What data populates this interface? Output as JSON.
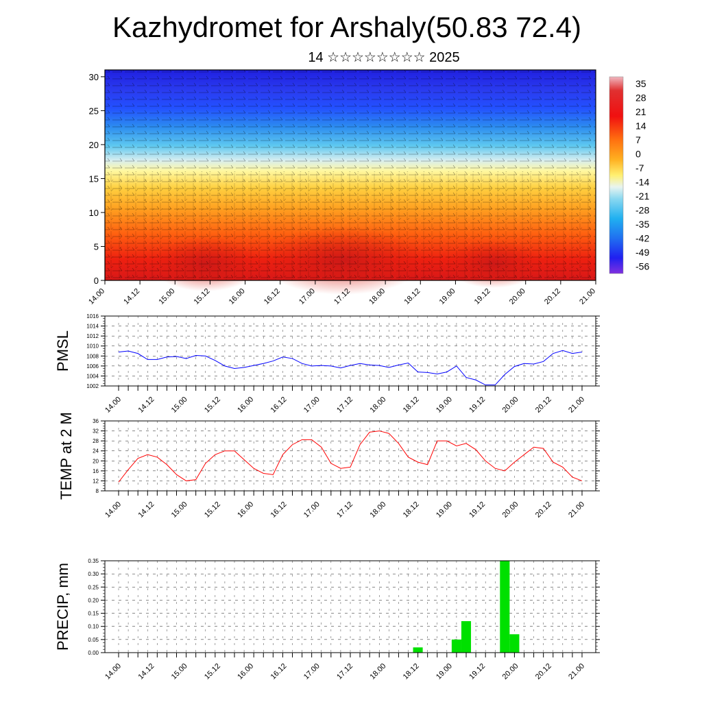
{
  "header": {
    "title": "Kazhydromet for Arshaly(50.83 72.4)",
    "subtitle": "14 ☆☆☆☆☆☆☆☆ 2025"
  },
  "colors": {
    "pressure_line": "#0000ff",
    "temperature_line": "#ff0000",
    "precip_bar": "#00e000"
  },
  "chart_data": [
    {
      "type": "heatmap",
      "title": "",
      "description_levels": "cross-section of temperature with wind barbs",
      "x_tick_labels": [
        "14.00",
        "14.12",
        "15.00",
        "15.12",
        "16.00",
        "16.12",
        "17.00",
        "17.12",
        "18.00",
        "18.12",
        "19.00",
        "19.12",
        "20.00",
        "20.12",
        "21.00"
      ],
      "y_tick_labels": [
        "0",
        "5",
        "10",
        "15",
        "20",
        "25",
        "30"
      ],
      "ylim": [
        0,
        31
      ],
      "colorbar_labels": [
        "35",
        "28",
        "21",
        "14",
        "7",
        "0",
        "-7",
        "-14",
        "-21",
        "-28",
        "-35",
        "-42",
        "-49",
        "-56"
      ],
      "colorbar_range": [
        -60,
        38
      ]
    },
    {
      "type": "line",
      "ylabel": "PMSL",
      "ylim": [
        1002,
        1016
      ],
      "y_tick_labels": [
        "1016",
        "1014",
        "1012",
        "1010",
        "1008",
        "1006",
        "1004",
        "1002"
      ],
      "x_tick_labels": [
        "14.00",
        "14.12",
        "15.00",
        "15.12",
        "16.00",
        "16.12",
        "17.00",
        "17.12",
        "18.00",
        "18.12",
        "19.00",
        "19.12",
        "20.00",
        "20.12",
        "21.00"
      ],
      "x_hours": [
        0,
        3,
        6,
        9,
        12,
        15,
        18,
        21,
        24,
        27,
        30,
        33,
        36,
        39,
        42,
        45,
        48,
        51,
        54,
        57,
        60,
        63,
        66,
        69,
        72,
        75,
        78,
        81,
        84,
        87,
        90,
        93,
        96,
        99,
        102,
        105,
        108,
        111,
        114,
        117,
        120,
        123,
        126,
        129,
        132,
        135,
        138,
        141,
        144
      ],
      "values": [
        1008.8,
        1009.0,
        1008.5,
        1007.3,
        1007.3,
        1007.8,
        1007.9,
        1007.5,
        1008.1,
        1008.0,
        1007.1,
        1006.0,
        1005.5,
        1005.7,
        1006.1,
        1006.5,
        1007.0,
        1007.8,
        1007.5,
        1006.5,
        1006.0,
        1006.1,
        1006.0,
        1005.6,
        1006.1,
        1006.5,
        1006.2,
        1006.1,
        1005.7,
        1006.2,
        1006.6,
        1004.8,
        1004.7,
        1004.4,
        1004.8,
        1006.0,
        1003.7,
        1003.2,
        1002.2,
        1002.2,
        1004.3,
        1005.9,
        1006.5,
        1006.4,
        1006.9,
        1008.5,
        1009.1,
        1008.5,
        1008.8
      ]
    },
    {
      "type": "line",
      "ylabel": "TEMP at 2 M",
      "ylim": [
        8,
        36
      ],
      "y_tick_labels": [
        "36",
        "32",
        "28",
        "24",
        "20",
        "16",
        "12",
        "8"
      ],
      "x_tick_labels": [
        "14.00",
        "14.12",
        "15.00",
        "15.12",
        "16.00",
        "16.12",
        "17.00",
        "17.12",
        "18.00",
        "18.12",
        "19.00",
        "19.12",
        "20.00",
        "20.12",
        "21.00"
      ],
      "x_hours": [
        0,
        3,
        6,
        9,
        12,
        15,
        18,
        21,
        24,
        27,
        30,
        33,
        36,
        39,
        42,
        45,
        48,
        51,
        54,
        57,
        60,
        63,
        66,
        69,
        72,
        75,
        78,
        81,
        84,
        87,
        90,
        93,
        96,
        99,
        102,
        105,
        108,
        111,
        114,
        117,
        120,
        123,
        126,
        129,
        132,
        135,
        138,
        141,
        144
      ],
      "values": [
        11.5,
        16.5,
        21.0,
        22.5,
        21.5,
        18.5,
        14.5,
        12.0,
        12.5,
        19.0,
        22.5,
        24.0,
        24.0,
        20.5,
        17.0,
        15.0,
        14.5,
        22.5,
        26.5,
        28.5,
        28.5,
        25.5,
        19.0,
        17.0,
        17.5,
        26.5,
        31.5,
        32.0,
        31.0,
        27.0,
        21.5,
        19.5,
        18.5,
        28.0,
        28.0,
        26.0,
        27.0,
        24.5,
        20.0,
        17.0,
        16.0,
        19.5,
        22.5,
        25.5,
        25.0,
        19.5,
        17.5,
        13.5,
        12.0
      ]
    },
    {
      "type": "bar",
      "ylabel": "PRECIP, mm",
      "ylim": [
        0,
        0.35
      ],
      "y_tick_labels": [
        "0.35",
        "0.30",
        "0.25",
        "0.20",
        "0.15",
        "0.10",
        "0.05",
        "0.00"
      ],
      "x_tick_labels": [
        "14.00",
        "14.12",
        "15.00",
        "15.12",
        "16.00",
        "16.12",
        "17.00",
        "17.12",
        "18.00",
        "18.12",
        "19.00",
        "19.12",
        "20.00",
        "20.12",
        "21.00"
      ],
      "x_hours": [
        93,
        105,
        108,
        120,
        123
      ],
      "values": [
        0.02,
        0.05,
        0.12,
        0.35,
        0.07
      ]
    }
  ]
}
